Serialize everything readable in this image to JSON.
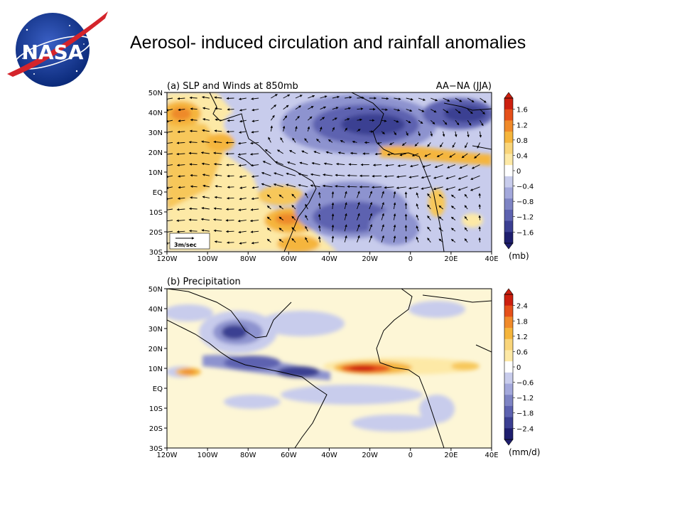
{
  "slide": {
    "title": "Aerosol- induced circulation and rainfall anomalies",
    "logo_text": "NASA"
  },
  "colors": {
    "neg_dark": "#1e1e6e",
    "neg_mid": "#5d62b0",
    "neg_light": "#c8ccec",
    "neutral": "#ffffff",
    "pos_light": "#fde9a6",
    "pos_mid": "#f5b53c",
    "pos_dark": "#cc1f0f"
  },
  "panel_a": {
    "title": "(a)  SLP  and  Winds  at  850mb",
    "subtitle": "AA−NA  (JJA)",
    "lat_labels": [
      "50N",
      "40N",
      "30N",
      "20N",
      "10N",
      "EQ",
      "10S",
      "20S",
      "30S"
    ],
    "lon_labels": [
      "120W",
      "100W",
      "80W",
      "60W",
      "40W",
      "20W",
      "0",
      "20E",
      "40E"
    ],
    "colorbar_labels": [
      "1.6",
      "1.2",
      "0.8",
      "0.4",
      "0",
      "−0.4",
      "−0.8",
      "−1.2",
      "−1.6"
    ],
    "units": "(mb)",
    "ref_vector": "3m/sec"
  },
  "panel_b": {
    "title": "(b)  Precipitation",
    "lat_labels": [
      "50N",
      "40N",
      "30N",
      "20N",
      "10N",
      "EQ",
      "10S",
      "20S",
      "30S"
    ],
    "lon_labels": [
      "120W",
      "100W",
      "80W",
      "60W",
      "40W",
      "20W",
      "0",
      "20E",
      "40E"
    ],
    "colorbar_labels": [
      "2.4",
      "1.8",
      "1.2",
      "0.6",
      "0",
      "−0.6",
      "−1.2",
      "−1.8",
      "−2.4"
    ],
    "units": "(mm/d)"
  }
}
